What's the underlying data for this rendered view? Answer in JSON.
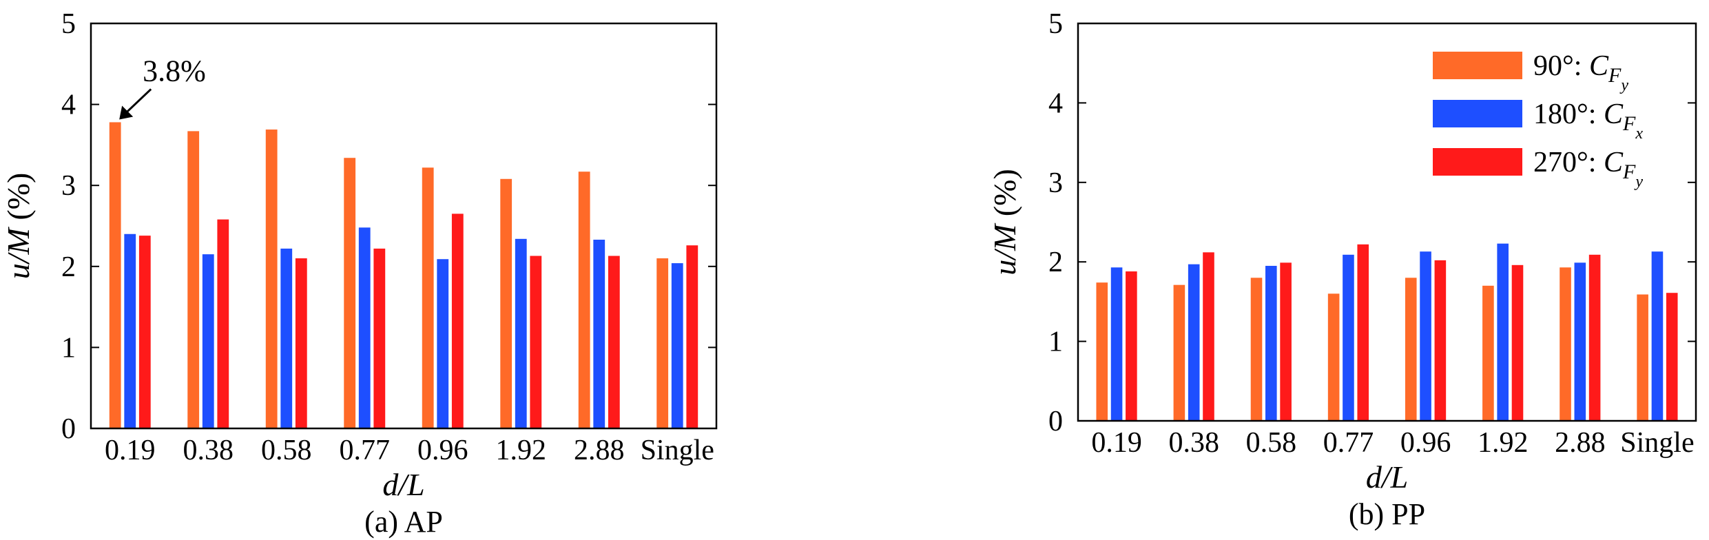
{
  "colors": {
    "orange": "#FF6A28",
    "blue": "#1E4FFF",
    "red": "#FF1A1A",
    "axis": "#000000"
  },
  "legend": [
    {
      "angle": "90°: ",
      "sym": "C",
      "sub": "F",
      "subsub": "y",
      "color_key": "orange"
    },
    {
      "angle": "180°: ",
      "sym": "C",
      "sub": "F",
      "subsub": "x",
      "color_key": "blue"
    },
    {
      "angle": "270°: ",
      "sym": "C",
      "sub": "F",
      "subsub": "y",
      "color_key": "red"
    }
  ],
  "chart_data": [
    {
      "type": "bar",
      "caption": "(a) AP",
      "xlabel": "d/L",
      "ylabel": "u/M (%)",
      "ylim": [
        0,
        5
      ],
      "yticks": [
        "0",
        "1",
        "2",
        "3",
        "4",
        "5"
      ],
      "categories": [
        "0.19",
        "0.38",
        "0.58",
        "0.77",
        "0.96",
        "1.92",
        "2.88",
        "Single"
      ],
      "series": [
        {
          "color_key": "orange",
          "values": [
            3.78,
            3.67,
            3.69,
            3.34,
            3.22,
            3.08,
            3.17,
            2.1
          ]
        },
        {
          "color_key": "blue",
          "values": [
            2.4,
            2.15,
            2.22,
            2.48,
            2.09,
            2.34,
            2.33,
            2.04
          ]
        },
        {
          "color_key": "red",
          "values": [
            2.38,
            2.58,
            2.1,
            2.22,
            2.65,
            2.13,
            2.13,
            2.26
          ]
        }
      ],
      "annotation": {
        "text": "3.8%",
        "points_to": {
          "series_index": 0,
          "category": "0.19"
        }
      }
    },
    {
      "type": "bar",
      "caption": "(b) PP",
      "xlabel": "d/L",
      "ylabel": "u/M (%)",
      "ylim": [
        0,
        5
      ],
      "yticks": [
        "0",
        "1",
        "2",
        "3",
        "4",
        "5"
      ],
      "categories": [
        "0.19",
        "0.38",
        "0.58",
        "0.77",
        "0.96",
        "1.92",
        "2.88",
        "Single"
      ],
      "series": [
        {
          "color_key": "orange",
          "values": [
            1.74,
            1.71,
            1.8,
            1.6,
            1.8,
            1.7,
            1.93,
            1.59
          ]
        },
        {
          "color_key": "blue",
          "values": [
            1.93,
            1.97,
            1.95,
            2.09,
            2.13,
            2.23,
            1.99,
            2.13
          ]
        },
        {
          "color_key": "red",
          "values": [
            1.88,
            2.12,
            1.99,
            2.22,
            2.02,
            1.96,
            2.09,
            1.61
          ]
        }
      ],
      "legend": true
    }
  ]
}
